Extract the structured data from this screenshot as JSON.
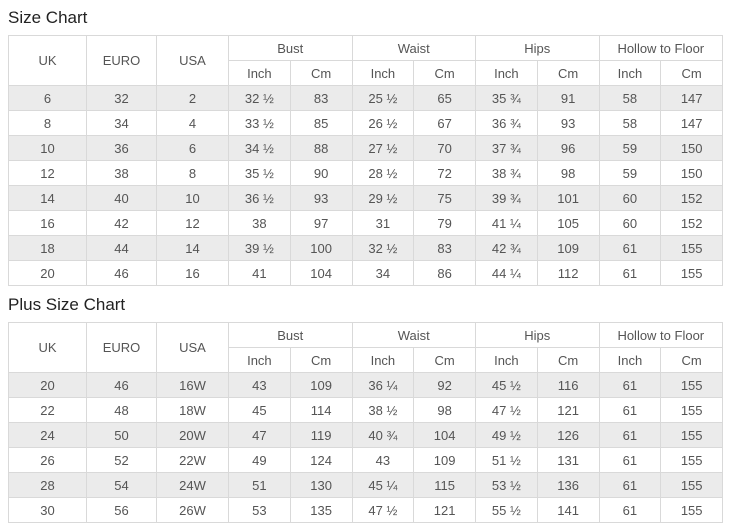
{
  "page": {
    "background_color": "#ffffff",
    "stripe_color": "#ebebeb",
    "border_color": "#d9d9d9",
    "body_text_color": "#555555",
    "title_text_color": "#222222"
  },
  "chart_data": [
    {
      "type": "table",
      "title": "Size Chart",
      "columns_simple": [
        "UK",
        "EURO",
        "USA"
      ],
      "column_groups": [
        "Bust",
        "Waist",
        "Hips",
        "Hollow to Floor"
      ],
      "subcolumns": [
        "Inch",
        "Cm"
      ],
      "rows": [
        [
          "6",
          "32",
          "2",
          "32 ½",
          "83",
          "25 ½",
          "65",
          "35 ¾",
          "91",
          "58",
          "147"
        ],
        [
          "8",
          "34",
          "4",
          "33 ½",
          "85",
          "26 ½",
          "67",
          "36 ¾",
          "93",
          "58",
          "147"
        ],
        [
          "10",
          "36",
          "6",
          "34 ½",
          "88",
          "27 ½",
          "70",
          "37 ¾",
          "96",
          "59",
          "150"
        ],
        [
          "12",
          "38",
          "8",
          "35 ½",
          "90",
          "28 ½",
          "72",
          "38 ¾",
          "98",
          "59",
          "150"
        ],
        [
          "14",
          "40",
          "10",
          "36 ½",
          "93",
          "29 ½",
          "75",
          "39 ¾",
          "101",
          "60",
          "152"
        ],
        [
          "16",
          "42",
          "12",
          "38",
          "97",
          "31",
          "79",
          "41 ¼",
          "105",
          "60",
          "152"
        ],
        [
          "18",
          "44",
          "14",
          "39 ½",
          "100",
          "32 ½",
          "83",
          "42 ¾",
          "109",
          "61",
          "155"
        ],
        [
          "20",
          "46",
          "16",
          "41",
          "104",
          "34",
          "86",
          "44 ¼",
          "112",
          "61",
          "155"
        ]
      ]
    },
    {
      "type": "table",
      "title": "Plus Size Chart",
      "columns_simple": [
        "UK",
        "EURO",
        "USA"
      ],
      "column_groups": [
        "Bust",
        "Waist",
        "Hips",
        "Hollow to Floor"
      ],
      "subcolumns": [
        "Inch",
        "Cm"
      ],
      "rows": [
        [
          "20",
          "46",
          "16W",
          "43",
          "109",
          "36 ¼",
          "92",
          "45 ½",
          "116",
          "61",
          "155"
        ],
        [
          "22",
          "48",
          "18W",
          "45",
          "114",
          "38 ½",
          "98",
          "47 ½",
          "121",
          "61",
          "155"
        ],
        [
          "24",
          "50",
          "20W",
          "47",
          "119",
          "40 ¾",
          "104",
          "49 ½",
          "126",
          "61",
          "155"
        ],
        [
          "26",
          "52",
          "22W",
          "49",
          "124",
          "43",
          "109",
          "51 ½",
          "131",
          "61",
          "155"
        ],
        [
          "28",
          "54",
          "24W",
          "51",
          "130",
          "45 ¼",
          "115",
          "53 ½",
          "136",
          "61",
          "155"
        ],
        [
          "30",
          "56",
          "26W",
          "53",
          "135",
          "47 ½",
          "121",
          "55 ½",
          "141",
          "61",
          "155"
        ]
      ]
    }
  ]
}
